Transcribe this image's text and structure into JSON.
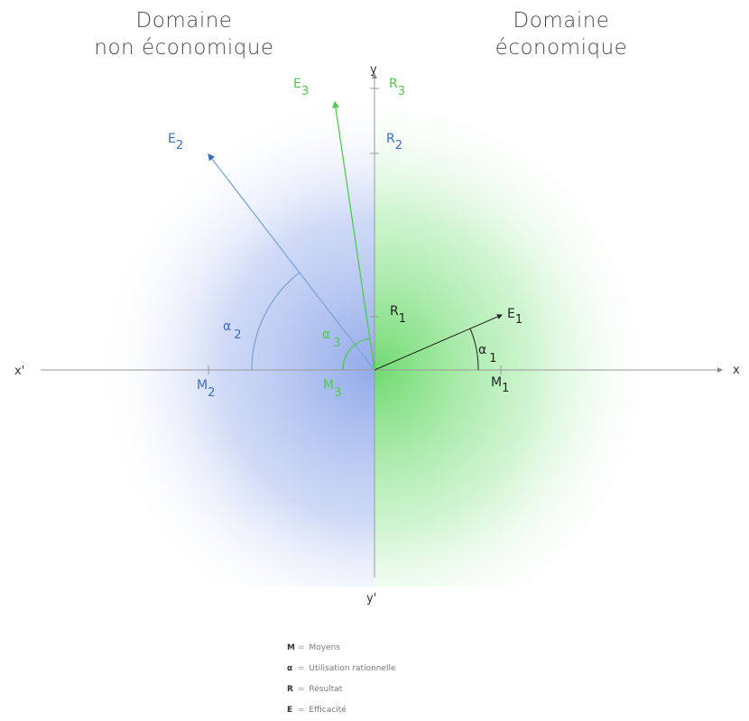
{
  "domains": {
    "left": [
      "Domaine",
      "non économique"
    ],
    "right": [
      "Domaine",
      "économique"
    ]
  },
  "axes": {
    "x_positive": "x",
    "x_negative": "x'",
    "y_positive": "y",
    "y_negative": "y'"
  },
  "labels": {
    "E1": {
      "base": "E",
      "sub": "1"
    },
    "E2": {
      "base": "E",
      "sub": "2"
    },
    "E3": {
      "base": "E",
      "sub": "3"
    },
    "R1": {
      "base": "R",
      "sub": "1"
    },
    "R2": {
      "base": "R",
      "sub": "2"
    },
    "R3": {
      "base": "R",
      "sub": "3"
    },
    "M1": {
      "base": "M",
      "sub": "1"
    },
    "M2": {
      "base": "M",
      "sub": "2"
    },
    "M3": {
      "base": "M",
      "sub": "3"
    },
    "a1": {
      "base": "α",
      "sub": "1"
    },
    "a2": {
      "base": "α",
      "sub": "2"
    },
    "a3": {
      "base": "α",
      "sub": "3"
    }
  },
  "legend": [
    {
      "symbol": "M",
      "text": "Moyens"
    },
    {
      "symbol": "α",
      "text": "Utilisation rationnelle"
    },
    {
      "symbol": "R",
      "text": "Résultat"
    },
    {
      "symbol": "E",
      "text": "Efficacité"
    }
  ],
  "colors": {
    "series1": "#222222",
    "series2": "#3a6fc0",
    "series3": "#4ccb4c",
    "axis": "#999999",
    "glow_left": "#8fa8ea",
    "glow_right": "#7ee07e"
  }
}
